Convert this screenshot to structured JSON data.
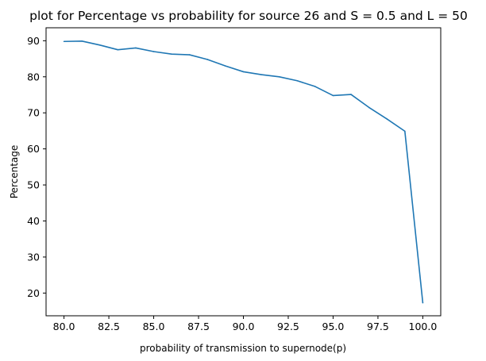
{
  "chart_data": {
    "type": "line",
    "title": "plot for Percentage vs probability for source 26 and S = 0.5 and L = 50",
    "xlabel": "probability of transmission to supernode(p)",
    "ylabel": "Percentage",
    "xlim": [
      79,
      101
    ],
    "ylim": [
      13.7,
      93.6
    ],
    "xticks": [
      80.0,
      82.5,
      85.0,
      87.5,
      90.0,
      92.5,
      95.0,
      97.5,
      100.0
    ],
    "xtick_labels": [
      "80.0",
      "82.5",
      "85.0",
      "87.5",
      "90.0",
      "92.5",
      "95.0",
      "97.5",
      "100.0"
    ],
    "yticks": [
      20,
      30,
      40,
      50,
      60,
      70,
      80,
      90
    ],
    "ytick_labels": [
      "20",
      "30",
      "40",
      "50",
      "60",
      "70",
      "80",
      "90"
    ],
    "grid": false,
    "series": [
      {
        "color": "#1f77b4",
        "x": [
          80,
          81,
          82,
          83,
          84,
          85,
          86,
          87,
          88,
          89,
          90,
          91,
          92,
          93,
          94,
          95,
          96,
          97,
          98,
          99,
          100
        ],
        "y": [
          89.8,
          89.9,
          88.8,
          87.5,
          88.0,
          87.0,
          86.3,
          86.1,
          84.8,
          83.0,
          81.4,
          80.6,
          80.0,
          78.9,
          77.3,
          74.8,
          75.1,
          71.5,
          68.3,
          64.9,
          17.3
        ]
      }
    ]
  }
}
